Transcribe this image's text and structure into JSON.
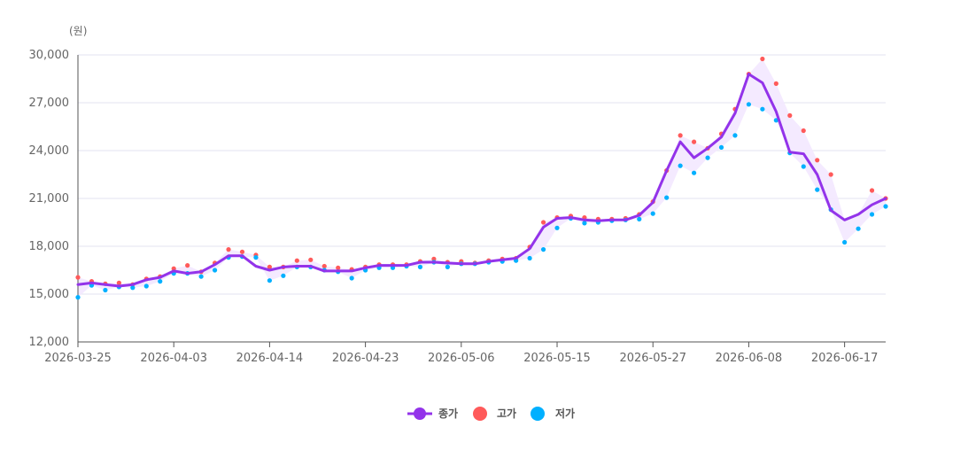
{
  "chart_data": {
    "type": "line",
    "y_unit": "(원)",
    "ylim": [
      12000,
      30000
    ],
    "y_ticks": [
      "30,000",
      "27,000",
      "24,000",
      "21,000",
      "18,000",
      "15,000",
      "12,000"
    ],
    "y_tick_values": [
      30000,
      27000,
      24000,
      21000,
      18000,
      15000,
      12000
    ],
    "x_tick_labels": [
      "2026-03-25",
      "2026-04-03",
      "2026-04-14",
      "2026-04-23",
      "2026-05-06",
      "2026-05-15",
      "2026-05-27",
      "2026-06-08",
      "2026-06-17"
    ],
    "x_tick_index": [
      0,
      7,
      14,
      21,
      28,
      35,
      42,
      49,
      56
    ],
    "grid": true,
    "legend_position": "bottom-center",
    "colors": {
      "close": "#9333ea",
      "high": "#ff5a5a",
      "low": "#00b0ff",
      "band": "#f3e8ff",
      "grid": "#e3e3f0",
      "axis": "#555555"
    },
    "series": [
      {
        "name": "종가",
        "values": [
          15600,
          15700,
          15600,
          15500,
          15600,
          15900,
          16050,
          16450,
          16300,
          16400,
          16850,
          17400,
          17400,
          16750,
          16500,
          16700,
          16750,
          16750,
          16450,
          16450,
          16450,
          16650,
          16800,
          16800,
          16800,
          17000,
          17000,
          16950,
          16900,
          16900,
          17050,
          17150,
          17250,
          17850,
          19200,
          19750,
          19800,
          19650,
          19600,
          19650,
          19650,
          19950,
          20750,
          22750,
          24550,
          23550,
          24150,
          24850,
          26350,
          28800,
          28250,
          26450,
          23900,
          23800,
          22500,
          20250,
          19650,
          20000,
          20600,
          21000
        ]
      },
      {
        "name": "고가",
        "values": [
          16050,
          15800,
          15650,
          15700,
          15600,
          15950,
          16100,
          16600,
          16800,
          16400,
          16950,
          17800,
          17650,
          17450,
          16700,
          16700,
          17100,
          17150,
          16750,
          16650,
          16550,
          16700,
          16850,
          16850,
          16850,
          17050,
          17200,
          17000,
          17050,
          16950,
          17100,
          17200,
          17250,
          17950,
          19500,
          19800,
          19900,
          19800,
          19700,
          19700,
          19750,
          20000,
          20800,
          22750,
          24950,
          24550,
          24150,
          25050,
          26600,
          28800,
          29750,
          28200,
          26200,
          25250,
          23400,
          22500,
          null,
          null,
          21500,
          21000
        ]
      },
      {
        "name": "저가",
        "values": [
          14800,
          15550,
          15250,
          15450,
          15400,
          15500,
          15800,
          16300,
          16300,
          16100,
          16500,
          17300,
          17350,
          17300,
          15850,
          16150,
          16700,
          16700,
          16500,
          16400,
          16000,
          16500,
          16650,
          16650,
          16750,
          16700,
          17000,
          16700,
          16900,
          16900,
          17000,
          17050,
          17100,
          17250,
          17800,
          19150,
          19750,
          19450,
          19500,
          19600,
          19650,
          19700,
          20050,
          21050,
          23050,
          22600,
          23550,
          24200,
          24950,
          26900,
          26600,
          25900,
          23850,
          23000,
          21550,
          20300,
          18250,
          19100,
          20000,
          20500
        ]
      }
    ]
  },
  "legend": {
    "close_label": "종가",
    "high_label": "고가",
    "low_label": "저가"
  }
}
